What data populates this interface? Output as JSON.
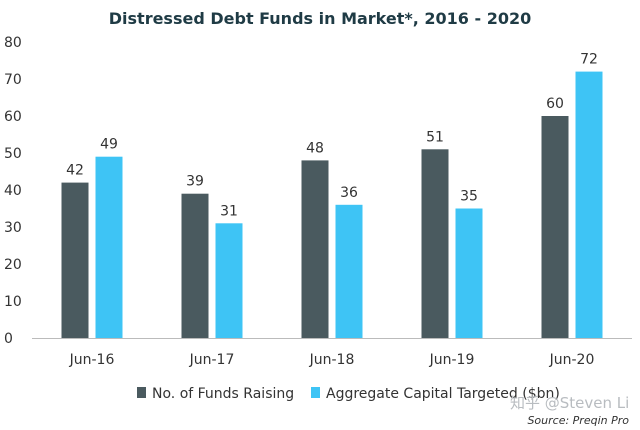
{
  "chart_data": {
    "type": "bar",
    "title": "Distressed Debt Funds in Market*, 2016 - 2020",
    "categories": [
      "Jun-16",
      "Jun-17",
      "Jun-18",
      "Jun-19",
      "Jun-20"
    ],
    "series": [
      {
        "name": "No. of Funds Raising",
        "color": "#4a5a5f",
        "values": [
          42,
          39,
          48,
          51,
          60
        ]
      },
      {
        "name": "Aggregate Capital Targeted ($bn)",
        "color": "#3ec4f5",
        "values": [
          49,
          31,
          36,
          35,
          72
        ]
      }
    ],
    "ylim": [
      0,
      80
    ],
    "yticks": [
      0,
      10,
      20,
      30,
      40,
      50,
      60,
      70,
      80
    ],
    "xlabel": "",
    "ylabel": "",
    "grid": false,
    "legend_position": "bottom-center",
    "source": "Source: Preqin Pro",
    "watermark": "知乎 @Steven Li"
  }
}
